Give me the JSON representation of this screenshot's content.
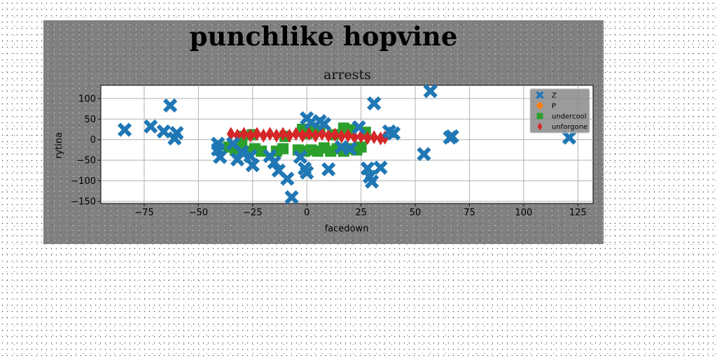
{
  "chart_data": {
    "type": "scatter",
    "title": "punchlike hopvine",
    "subtitle": "arrests",
    "xlabel": "facedown",
    "ylabel": "rytina",
    "xlim": [
      -95,
      132
    ],
    "ylim": [
      -155,
      132
    ],
    "xticks": [
      -75,
      -50,
      -25,
      0,
      25,
      50,
      75,
      100,
      125
    ],
    "yticks": [
      -150,
      -100,
      -50,
      0,
      50,
      100
    ],
    "grid": true,
    "legend_position": "top-right",
    "series": [
      {
        "name": "Z",
        "color": "#1f77b4",
        "marker": "x",
        "points": [
          [
            -84,
            24
          ],
          [
            -72,
            32
          ],
          [
            -66,
            20
          ],
          [
            -63,
            83
          ],
          [
            -61,
            3
          ],
          [
            -60,
            16
          ],
          [
            -41,
            -10
          ],
          [
            -41,
            -24
          ],
          [
            -40,
            -42
          ],
          [
            -34,
            -10
          ],
          [
            -32,
            -48
          ],
          [
            -30,
            -30
          ],
          [
            -26,
            -40
          ],
          [
            -25,
            -62
          ],
          [
            -17,
            -40
          ],
          [
            -15,
            -55
          ],
          [
            -13,
            -75
          ],
          [
            -9,
            -95
          ],
          [
            -7,
            -140
          ],
          [
            -3,
            -42
          ],
          [
            -1,
            -70
          ],
          [
            0,
            -80
          ],
          [
            0,
            52
          ],
          [
            2,
            42
          ],
          [
            6,
            45
          ],
          [
            8,
            38
          ],
          [
            10,
            -72
          ],
          [
            16,
            -18
          ],
          [
            20,
            -22
          ],
          [
            24,
            30
          ],
          [
            28,
            -70
          ],
          [
            29,
            -90
          ],
          [
            30,
            -102
          ],
          [
            31,
            88
          ],
          [
            34,
            -68
          ],
          [
            38,
            20
          ],
          [
            40,
            15
          ],
          [
            54,
            -35
          ],
          [
            57,
            118
          ],
          [
            66,
            5
          ],
          [
            67,
            8
          ],
          [
            121,
            5
          ]
        ]
      },
      {
        "name": "P",
        "color": "#ff7f0e",
        "marker": "circle",
        "points": []
      },
      {
        "name": "undercool",
        "color": "#2ca02c",
        "marker": "square",
        "points": [
          [
            -36,
            -18
          ],
          [
            -33,
            -25
          ],
          [
            -30,
            -18
          ],
          [
            -27,
            -28
          ],
          [
            -24,
            -22
          ],
          [
            -21,
            -28
          ],
          [
            -14,
            -28
          ],
          [
            -11,
            -22
          ],
          [
            -4,
            -25
          ],
          [
            -1,
            -28
          ],
          [
            2,
            -25
          ],
          [
            5,
            -28
          ],
          [
            8,
            -20
          ],
          [
            11,
            -28
          ],
          [
            14,
            -22
          ],
          [
            17,
            -28
          ],
          [
            20,
            -22
          ],
          [
            23,
            -25
          ],
          [
            25,
            -18
          ],
          [
            -2,
            25
          ],
          [
            3,
            28
          ],
          [
            6,
            22
          ],
          [
            17,
            28
          ],
          [
            20,
            24
          ],
          [
            27,
            18
          ],
          [
            -30,
            8
          ],
          [
            -25,
            12
          ],
          [
            -10,
            8
          ],
          [
            0,
            15
          ],
          [
            12,
            12
          ]
        ]
      },
      {
        "name": "unforgone",
        "color": "#d62728",
        "marker": "diamond",
        "points": [
          [
            -35,
            14
          ],
          [
            -32,
            10
          ],
          [
            -29,
            14
          ],
          [
            -26,
            10
          ],
          [
            -23,
            14
          ],
          [
            -20,
            10
          ],
          [
            -17,
            14
          ],
          [
            -14,
            10
          ],
          [
            -11,
            14
          ],
          [
            -8,
            10
          ],
          [
            -5,
            14
          ],
          [
            -2,
            10
          ],
          [
            1,
            14
          ],
          [
            4,
            10
          ],
          [
            7,
            14
          ],
          [
            10,
            10
          ],
          [
            13,
            12
          ],
          [
            16,
            8
          ],
          [
            19,
            10
          ],
          [
            22,
            6
          ],
          [
            25,
            8
          ],
          [
            28,
            4
          ],
          [
            31,
            6
          ],
          [
            34,
            3
          ],
          [
            36,
            5
          ]
        ]
      }
    ]
  }
}
